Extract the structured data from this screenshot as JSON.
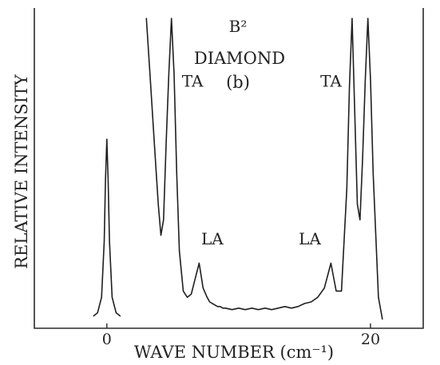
{
  "chart_data": {
    "type": "line",
    "title": "DIAMOND",
    "panel_label": "(b)",
    "sample_label": "B²",
    "xlabel": "WAVE NUMBER (cm⁻¹)",
    "ylabel": "RELATIVE INTENSITY",
    "x_tick_labels": [
      "0",
      "20"
    ],
    "x_ticks": [
      0,
      20
    ],
    "xlim": [
      -5.5,
      24
    ],
    "ylim": [
      0,
      1
    ],
    "grid": false,
    "series": [
      {
        "x": [
          -1.0,
          -0.7,
          -0.4,
          -0.2,
          -0.1,
          0.0,
          0.1,
          0.2,
          0.4,
          0.7,
          1.0
        ],
        "y": [
          0.04,
          0.05,
          0.1,
          0.28,
          0.48,
          0.61,
          0.48,
          0.28,
          0.1,
          0.05,
          0.04
        ]
      },
      {
        "x": [
          3.0,
          3.3,
          3.6,
          3.9,
          4.1,
          4.3,
          4.5,
          4.7,
          4.9,
          5.1,
          5.3,
          5.5,
          5.8,
          6.1,
          6.4,
          6.7,
          7.0,
          7.3,
          7.6,
          7.8,
          8.0,
          8.2,
          8.4,
          8.6,
          8.8,
          9.0,
          9.5,
          10.0,
          10.5,
          11.0,
          11.5,
          12.0,
          12.5,
          13.0,
          13.5,
          14.0,
          14.5,
          15.0,
          15.5,
          16.0,
          16.5,
          17.0,
          17.4,
          17.8,
          18.2,
          18.4,
          18.6,
          18.8,
          19.0,
          19.2,
          19.4,
          19.6,
          19.8,
          20.0,
          20.2,
          20.4,
          20.6,
          20.9
        ],
        "y": [
          1.0,
          0.8,
          0.6,
          0.4,
          0.3,
          0.35,
          0.6,
          0.82,
          1.0,
          0.82,
          0.5,
          0.25,
          0.12,
          0.1,
          0.11,
          0.16,
          0.21,
          0.13,
          0.1,
          0.085,
          0.08,
          0.075,
          0.07,
          0.07,
          0.065,
          0.065,
          0.06,
          0.065,
          0.06,
          0.065,
          0.06,
          0.065,
          0.06,
          0.065,
          0.07,
          0.065,
          0.07,
          0.08,
          0.085,
          0.1,
          0.13,
          0.21,
          0.12,
          0.12,
          0.45,
          0.78,
          1.0,
          0.7,
          0.4,
          0.35,
          0.55,
          0.8,
          1.0,
          0.8,
          0.5,
          0.3,
          0.1,
          0.03
        ]
      }
    ],
    "annotations": [
      {
        "text": "TA",
        "x": 6.5,
        "y": 0.78
      },
      {
        "text": "LA",
        "x": 8.0,
        "y": 0.27
      },
      {
        "text": "LA",
        "x": 15.4,
        "y": 0.27
      },
      {
        "text": "TA",
        "x": 17.0,
        "y": 0.78
      }
    ]
  }
}
